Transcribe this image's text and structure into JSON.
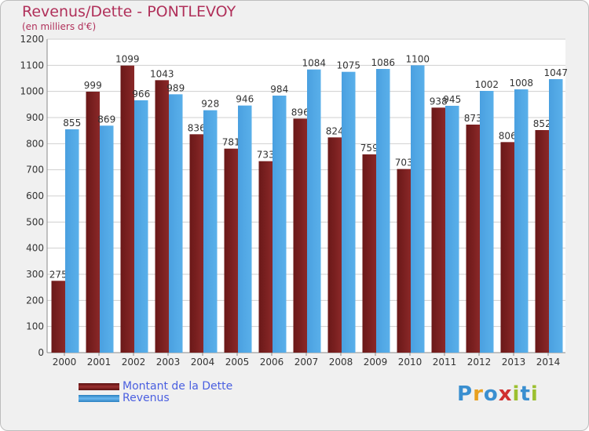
{
  "header": {
    "title": "Revenus/Dette - PONTLEVOY",
    "subtitle": "(en milliers d'€)"
  },
  "colors": {
    "dette": "#7a2020",
    "revenus": "#4aa0e0",
    "title": "#b0305a",
    "legend_text": "#4a5fe0"
  },
  "legend": [
    {
      "label": "Montant de la Dette",
      "color": "#7a2020"
    },
    {
      "label": "Revenus",
      "color": "#4aa0e0"
    }
  ],
  "logo": {
    "text": "Proxiti"
  },
  "chart_data": {
    "type": "bar",
    "categories": [
      "2000",
      "2001",
      "2002",
      "2003",
      "2004",
      "2005",
      "2006",
      "2007",
      "2008",
      "2009",
      "2010",
      "2011",
      "2012",
      "2013",
      "2014"
    ],
    "series": [
      {
        "name": "Montant de la Dette",
        "values": [
          275,
          999,
          1099,
          1043,
          836,
          781,
          733,
          896,
          824,
          759,
          703,
          938,
          873,
          806,
          852
        ]
      },
      {
        "name": "Revenus",
        "values": [
          855,
          869,
          966,
          989,
          928,
          946,
          984,
          1084,
          1075,
          1086,
          1100,
          945,
          1002,
          1008,
          1047
        ]
      }
    ],
    "ylim": [
      0,
      1200
    ],
    "yticks": [
      0,
      100,
      200,
      300,
      400,
      500,
      600,
      700,
      800,
      900,
      1000,
      1100,
      1200
    ],
    "grid": true,
    "title": "Revenus/Dette - PONTLEVOY",
    "ylabel": "(en milliers d'€)",
    "legend_position": "bottom-left"
  }
}
